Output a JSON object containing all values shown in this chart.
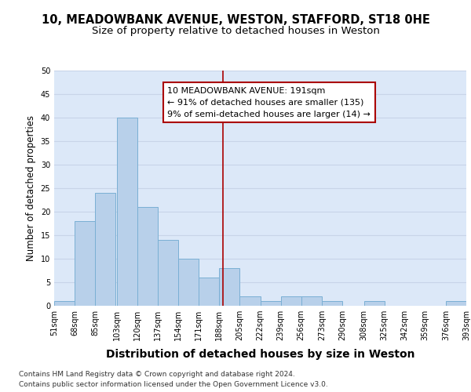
{
  "title1": "10, MEADOWBANK AVENUE, WESTON, STAFFORD, ST18 0HE",
  "title2": "Size of property relative to detached houses in Weston",
  "xlabel": "Distribution of detached houses by size in Weston",
  "ylabel": "Number of detached properties",
  "footnote1": "Contains HM Land Registry data © Crown copyright and database right 2024.",
  "footnote2": "Contains public sector information licensed under the Open Government Licence v3.0.",
  "bar_left_edges": [
    51,
    68,
    85,
    103,
    120,
    137,
    154,
    171,
    188,
    205,
    222,
    239,
    256,
    273,
    290,
    308,
    325,
    342,
    359,
    376
  ],
  "bar_heights": [
    1,
    18,
    24,
    40,
    21,
    14,
    10,
    6,
    8,
    2,
    1,
    2,
    2,
    1,
    0,
    1,
    0,
    0,
    0,
    1
  ],
  "bin_width": 17,
  "bar_color": "#b8d0ea",
  "bar_edge_color": "#7aafd4",
  "subject_value": 191,
  "vline_color": "#aa0000",
  "annotation_text": "10 MEADOWBANK AVENUE: 191sqm\n← 91% of detached houses are smaller (135)\n9% of semi-detached houses are larger (14) →",
  "annotation_box_color": "#ffffff",
  "annotation_box_edge": "#aa0000",
  "ylim": [
    0,
    50
  ],
  "yticks": [
    0,
    5,
    10,
    15,
    20,
    25,
    30,
    35,
    40,
    45,
    50
  ],
  "x_tick_labels": [
    "51sqm",
    "68sqm",
    "85sqm",
    "103sqm",
    "120sqm",
    "137sqm",
    "154sqm",
    "171sqm",
    "188sqm",
    "205sqm",
    "222sqm",
    "239sqm",
    "256sqm",
    "273sqm",
    "290sqm",
    "308sqm",
    "325sqm",
    "342sqm",
    "359sqm",
    "376sqm",
    "393sqm"
  ],
  "grid_color": "#c8d4e8",
  "bg_color": "#dce8f8",
  "title_fontsize": 10.5,
  "subtitle_fontsize": 9.5,
  "xlabel_fontsize": 10,
  "ylabel_fontsize": 8.5,
  "tick_fontsize": 7,
  "annotation_fontsize": 8,
  "footnote_fontsize": 6.5
}
